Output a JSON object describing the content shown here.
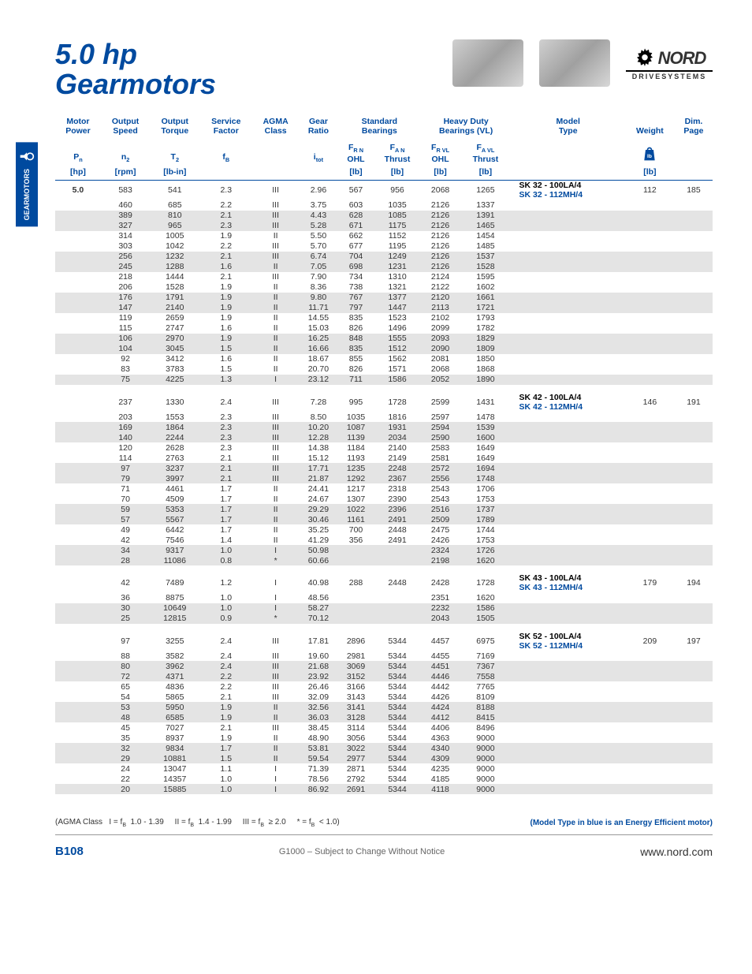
{
  "title_line1": "5.0 hp",
  "title_line2": "Gearmotors",
  "side_tab_text": "GEARMOTORS",
  "logo_brand": "NORD",
  "logo_sub": "DRIVESYSTEMS",
  "headers": {
    "row1": [
      "Motor Power",
      "Output Speed",
      "Output Torque",
      "Service Factor",
      "AGMA Class",
      "Gear Ratio",
      "Standard Bearings",
      "",
      "Heavy Duty Bearings (VL)",
      "",
      "Model Type",
      "Weight",
      "Dim. Page"
    ],
    "row2": [
      "P",
      "n",
      "T",
      "f",
      "",
      "i",
      "F",
      "F",
      "F",
      "F",
      "",
      "",
      ""
    ],
    "row2_sub": [
      "n",
      "2",
      "2",
      "B",
      "",
      "tot",
      "R N",
      "A N",
      "R VL",
      "A VL",
      "",
      "",
      ""
    ],
    "row3": [
      "",
      "",
      "",
      "",
      "",
      "",
      "OHL",
      "Thrust",
      "OHL",
      "Thrust",
      "",
      "",
      ""
    ],
    "row4_units": [
      "[hp]",
      "[rpm]",
      "[lb-in]",
      "",
      "",
      "",
      "[lb]",
      "[lb]",
      "[lb]",
      "[lb]",
      "",
      "[lb]",
      ""
    ]
  },
  "groups": [
    {
      "power": "5.0",
      "model_std": "SK 32 - 100LA/4",
      "model_eff": "SK 32 - 112MH/4",
      "weight": "112",
      "dim_page": "185",
      "rows": [
        {
          "n": "583",
          "t": "541",
          "f": "2.3",
          "c": "III",
          "i": "2.96",
          "frn": "567",
          "fan": "956",
          "frvl": "2068",
          "favl": "1265",
          "s": 0
        },
        {
          "n": "460",
          "t": "685",
          "f": "2.2",
          "c": "III",
          "i": "3.75",
          "frn": "603",
          "fan": "1035",
          "frvl": "2126",
          "favl": "1337",
          "s": 0
        },
        {
          "n": "389",
          "t": "810",
          "f": "2.1",
          "c": "III",
          "i": "4.43",
          "frn": "628",
          "fan": "1085",
          "frvl": "2126",
          "favl": "1391",
          "s": 1
        },
        {
          "n": "327",
          "t": "965",
          "f": "2.3",
          "c": "III",
          "i": "5.28",
          "frn": "671",
          "fan": "1175",
          "frvl": "2126",
          "favl": "1465",
          "s": 1
        },
        {
          "n": "314",
          "t": "1005",
          "f": "1.9",
          "c": "II",
          "i": "5.50",
          "frn": "662",
          "fan": "1152",
          "frvl": "2126",
          "favl": "1454",
          "s": 0
        },
        {
          "n": "303",
          "t": "1042",
          "f": "2.2",
          "c": "III",
          "i": "5.70",
          "frn": "677",
          "fan": "1195",
          "frvl": "2126",
          "favl": "1485",
          "s": 0
        },
        {
          "n": "256",
          "t": "1232",
          "f": "2.1",
          "c": "III",
          "i": "6.74",
          "frn": "704",
          "fan": "1249",
          "frvl": "2126",
          "favl": "1537",
          "s": 1
        },
        {
          "n": "245",
          "t": "1288",
          "f": "1.6",
          "c": "II",
          "i": "7.05",
          "frn": "698",
          "fan": "1231",
          "frvl": "2126",
          "favl": "1528",
          "s": 1
        },
        {
          "n": "218",
          "t": "1444",
          "f": "2.1",
          "c": "III",
          "i": "7.90",
          "frn": "734",
          "fan": "1310",
          "frvl": "2124",
          "favl": "1595",
          "s": 0
        },
        {
          "n": "206",
          "t": "1528",
          "f": "1.9",
          "c": "II",
          "i": "8.36",
          "frn": "738",
          "fan": "1321",
          "frvl": "2122",
          "favl": "1602",
          "s": 0
        },
        {
          "n": "176",
          "t": "1791",
          "f": "1.9",
          "c": "II",
          "i": "9.80",
          "frn": "767",
          "fan": "1377",
          "frvl": "2120",
          "favl": "1661",
          "s": 1
        },
        {
          "n": "147",
          "t": "2140",
          "f": "1.9",
          "c": "II",
          "i": "11.71",
          "frn": "797",
          "fan": "1447",
          "frvl": "2113",
          "favl": "1721",
          "s": 1
        },
        {
          "n": "119",
          "t": "2659",
          "f": "1.9",
          "c": "II",
          "i": "14.55",
          "frn": "835",
          "fan": "1523",
          "frvl": "2102",
          "favl": "1793",
          "s": 0
        },
        {
          "n": "115",
          "t": "2747",
          "f": "1.6",
          "c": "II",
          "i": "15.03",
          "frn": "826",
          "fan": "1496",
          "frvl": "2099",
          "favl": "1782",
          "s": 0
        },
        {
          "n": "106",
          "t": "2970",
          "f": "1.9",
          "c": "II",
          "i": "16.25",
          "frn": "848",
          "fan": "1555",
          "frvl": "2093",
          "favl": "1829",
          "s": 1
        },
        {
          "n": "104",
          "t": "3045",
          "f": "1.5",
          "c": "II",
          "i": "16.66",
          "frn": "835",
          "fan": "1512",
          "frvl": "2090",
          "favl": "1809",
          "s": 1
        },
        {
          "n": "92",
          "t": "3412",
          "f": "1.6",
          "c": "II",
          "i": "18.67",
          "frn": "855",
          "fan": "1562",
          "frvl": "2081",
          "favl": "1850",
          "s": 0
        },
        {
          "n": "83",
          "t": "3783",
          "f": "1.5",
          "c": "II",
          "i": "20.70",
          "frn": "826",
          "fan": "1571",
          "frvl": "2068",
          "favl": "1868",
          "s": 0
        },
        {
          "n": "75",
          "t": "4225",
          "f": "1.3",
          "c": "I",
          "i": "23.12",
          "frn": "711",
          "fan": "1586",
          "frvl": "2052",
          "favl": "1890",
          "s": 1
        }
      ]
    },
    {
      "model_std": "SK 42 - 100LA/4",
      "model_eff": "SK 42 - 112MH/4",
      "weight": "146",
      "dim_page": "191",
      "rows": [
        {
          "n": "237",
          "t": "1330",
          "f": "2.4",
          "c": "III",
          "i": "7.28",
          "frn": "995",
          "fan": "1728",
          "frvl": "2599",
          "favl": "1431",
          "s": 0
        },
        {
          "n": "203",
          "t": "1553",
          "f": "2.3",
          "c": "III",
          "i": "8.50",
          "frn": "1035",
          "fan": "1816",
          "frvl": "2597",
          "favl": "1478",
          "s": 0
        },
        {
          "n": "169",
          "t": "1864",
          "f": "2.3",
          "c": "III",
          "i": "10.20",
          "frn": "1087",
          "fan": "1931",
          "frvl": "2594",
          "favl": "1539",
          "s": 1
        },
        {
          "n": "140",
          "t": "2244",
          "f": "2.3",
          "c": "III",
          "i": "12.28",
          "frn": "1139",
          "fan": "2034",
          "frvl": "2590",
          "favl": "1600",
          "s": 1
        },
        {
          "n": "120",
          "t": "2628",
          "f": "2.3",
          "c": "III",
          "i": "14.38",
          "frn": "1184",
          "fan": "2140",
          "frvl": "2583",
          "favl": "1649",
          "s": 0
        },
        {
          "n": "114",
          "t": "2763",
          "f": "2.1",
          "c": "III",
          "i": "15.12",
          "frn": "1193",
          "fan": "2149",
          "frvl": "2581",
          "favl": "1649",
          "s": 0
        },
        {
          "n": "97",
          "t": "3237",
          "f": "2.1",
          "c": "III",
          "i": "17.71",
          "frn": "1235",
          "fan": "2248",
          "frvl": "2572",
          "favl": "1694",
          "s": 1
        },
        {
          "n": "79",
          "t": "3997",
          "f": "2.1",
          "c": "III",
          "i": "21.87",
          "frn": "1292",
          "fan": "2367",
          "frvl": "2556",
          "favl": "1748",
          "s": 1
        },
        {
          "n": "71",
          "t": "4461",
          "f": "1.7",
          "c": "II",
          "i": "24.41",
          "frn": "1217",
          "fan": "2318",
          "frvl": "2543",
          "favl": "1706",
          "s": 0
        },
        {
          "n": "70",
          "t": "4509",
          "f": "1.7",
          "c": "II",
          "i": "24.67",
          "frn": "1307",
          "fan": "2390",
          "frvl": "2543",
          "favl": "1753",
          "s": 0
        },
        {
          "n": "59",
          "t": "5353",
          "f": "1.7",
          "c": "II",
          "i": "29.29",
          "frn": "1022",
          "fan": "2396",
          "frvl": "2516",
          "favl": "1737",
          "s": 1
        },
        {
          "n": "57",
          "t": "5567",
          "f": "1.7",
          "c": "II",
          "i": "30.46",
          "frn": "1161",
          "fan": "2491",
          "frvl": "2509",
          "favl": "1789",
          "s": 1
        },
        {
          "n": "49",
          "t": "6442",
          "f": "1.7",
          "c": "II",
          "i": "35.25",
          "frn": "700",
          "fan": "2448",
          "frvl": "2475",
          "favl": "1744",
          "s": 0
        },
        {
          "n": "42",
          "t": "7546",
          "f": "1.4",
          "c": "II",
          "i": "41.29",
          "frn": "356",
          "fan": "2491",
          "frvl": "2426",
          "favl": "1753",
          "s": 0
        },
        {
          "n": "34",
          "t": "9317",
          "f": "1.0",
          "c": "I",
          "i": "50.98",
          "frn": "",
          "fan": "",
          "frvl": "2324",
          "favl": "1726",
          "s": 1
        },
        {
          "n": "28",
          "t": "11086",
          "f": "0.8",
          "c": "*",
          "i": "60.66",
          "frn": "",
          "fan": "",
          "frvl": "2198",
          "favl": "1620",
          "s": 1
        }
      ]
    },
    {
      "model_std": "SK 43 - 100LA/4",
      "model_eff": "SK 43 - 112MH/4",
      "weight": "179",
      "dim_page": "194",
      "rows": [
        {
          "n": "42",
          "t": "7489",
          "f": "1.2",
          "c": "I",
          "i": "40.98",
          "frn": "288",
          "fan": "2448",
          "frvl": "2428",
          "favl": "1728",
          "s": 0
        },
        {
          "n": "36",
          "t": "8875",
          "f": "1.0",
          "c": "I",
          "i": "48.56",
          "frn": "",
          "fan": "",
          "frvl": "2351",
          "favl": "1620",
          "s": 0
        },
        {
          "n": "30",
          "t": "10649",
          "f": "1.0",
          "c": "I",
          "i": "58.27",
          "frn": "",
          "fan": "",
          "frvl": "2232",
          "favl": "1586",
          "s": 1
        },
        {
          "n": "25",
          "t": "12815",
          "f": "0.9",
          "c": "*",
          "i": "70.12",
          "frn": "",
          "fan": "",
          "frvl": "2043",
          "favl": "1505",
          "s": 1
        }
      ]
    },
    {
      "model_std": "SK 52 - 100LA/4",
      "model_eff": "SK 52 - 112MH/4",
      "weight": "209",
      "dim_page": "197",
      "rows": [
        {
          "n": "97",
          "t": "3255",
          "f": "2.4",
          "c": "III",
          "i": "17.81",
          "frn": "2896",
          "fan": "5344",
          "frvl": "4457",
          "favl": "6975",
          "s": 0
        },
        {
          "n": "88",
          "t": "3582",
          "f": "2.4",
          "c": "III",
          "i": "19.60",
          "frn": "2981",
          "fan": "5344",
          "frvl": "4455",
          "favl": "7169",
          "s": 0
        },
        {
          "n": "80",
          "t": "3962",
          "f": "2.4",
          "c": "III",
          "i": "21.68",
          "frn": "3069",
          "fan": "5344",
          "frvl": "4451",
          "favl": "7367",
          "s": 1
        },
        {
          "n": "72",
          "t": "4371",
          "f": "2.2",
          "c": "III",
          "i": "23.92",
          "frn": "3152",
          "fan": "5344",
          "frvl": "4446",
          "favl": "7558",
          "s": 1
        },
        {
          "n": "65",
          "t": "4836",
          "f": "2.2",
          "c": "III",
          "i": "26.46",
          "frn": "3166",
          "fan": "5344",
          "frvl": "4442",
          "favl": "7765",
          "s": 0
        },
        {
          "n": "54",
          "t": "5865",
          "f": "2.1",
          "c": "III",
          "i": "32.09",
          "frn": "3143",
          "fan": "5344",
          "frvl": "4426",
          "favl": "8109",
          "s": 0
        },
        {
          "n": "53",
          "t": "5950",
          "f": "1.9",
          "c": "II",
          "i": "32.56",
          "frn": "3141",
          "fan": "5344",
          "frvl": "4424",
          "favl": "8188",
          "s": 1
        },
        {
          "n": "48",
          "t": "6585",
          "f": "1.9",
          "c": "II",
          "i": "36.03",
          "frn": "3128",
          "fan": "5344",
          "frvl": "4412",
          "favl": "8415",
          "s": 1
        },
        {
          "n": "45",
          "t": "7027",
          "f": "2.1",
          "c": "III",
          "i": "38.45",
          "frn": "3114",
          "fan": "5344",
          "frvl": "4406",
          "favl": "8496",
          "s": 0
        },
        {
          "n": "35",
          "t": "8937",
          "f": "1.9",
          "c": "II",
          "i": "48.90",
          "frn": "3056",
          "fan": "5344",
          "frvl": "4363",
          "favl": "9000",
          "s": 0
        },
        {
          "n": "32",
          "t": "9834",
          "f": "1.7",
          "c": "II",
          "i": "53.81",
          "frn": "3022",
          "fan": "5344",
          "frvl": "4340",
          "favl": "9000",
          "s": 1
        },
        {
          "n": "29",
          "t": "10881",
          "f": "1.5",
          "c": "II",
          "i": "59.54",
          "frn": "2977",
          "fan": "5344",
          "frvl": "4309",
          "favl": "9000",
          "s": 1
        },
        {
          "n": "24",
          "t": "13047",
          "f": "1.1",
          "c": "I",
          "i": "71.39",
          "frn": "2871",
          "fan": "5344",
          "frvl": "4235",
          "favl": "9000",
          "s": 0
        },
        {
          "n": "22",
          "t": "14357",
          "f": "1.0",
          "c": "I",
          "i": "78.56",
          "frn": "2792",
          "fan": "5344",
          "frvl": "4185",
          "favl": "9000",
          "s": 0
        },
        {
          "n": "20",
          "t": "15885",
          "f": "1.0",
          "c": "I",
          "i": "86.92",
          "frn": "2691",
          "fan": "5344",
          "frvl": "4118",
          "favl": "9000",
          "s": 1
        }
      ]
    }
  ],
  "footnote_left": "(AGMA Class   I = f_B  1.0 - 1.39      II = f_B  1.4 - 1.99      III = f_B  ≥ 2.0      * = f_B  < 1.0)",
  "footnote_right": "(Model Type in blue is an Energy Efficient motor)",
  "footer_page": "B108",
  "footer_mid": "G1000 – Subject to Change Without Notice",
  "footer_url": "www.nord.com"
}
